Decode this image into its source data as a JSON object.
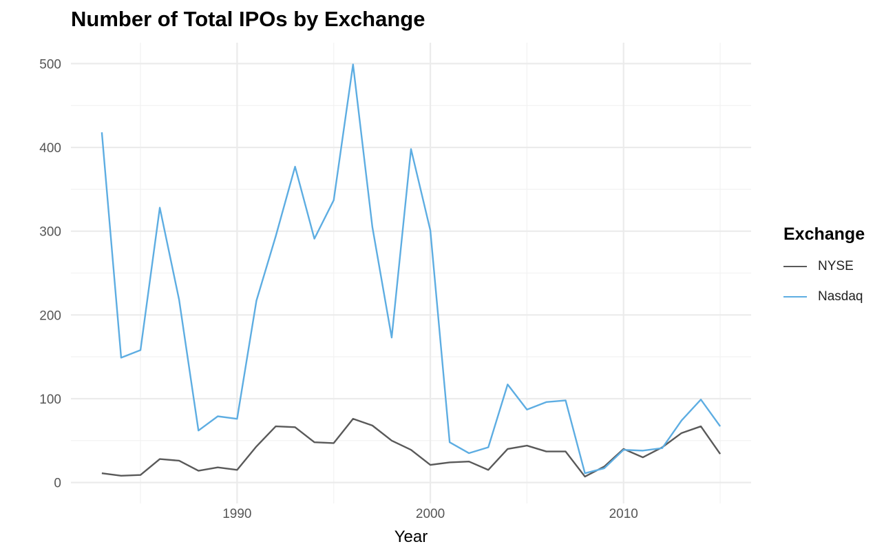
{
  "chart_data": {
    "type": "line",
    "title": "Number of Total IPOs by Exchange",
    "xlabel": "Year",
    "ylabel": "",
    "xlim": [
      1981.4,
      2016.6
    ],
    "ylim": [
      -25,
      525
    ],
    "x_ticks": [
      1990,
      2000,
      2010
    ],
    "x_tick_labels": [
      "1990",
      "2000",
      "2010"
    ],
    "y_ticks": [
      0,
      100,
      200,
      300,
      400,
      500
    ],
    "y_tick_labels": [
      "0",
      "100",
      "200",
      "300",
      "400",
      "500"
    ],
    "grid": true,
    "legend": {
      "title": "Exchange",
      "placement": "right"
    },
    "x": [
      1983,
      1984,
      1985,
      1986,
      1987,
      1988,
      1989,
      1990,
      1991,
      1992,
      1993,
      1994,
      1995,
      1996,
      1997,
      1998,
      1999,
      2000,
      2001,
      2002,
      2003,
      2004,
      2005,
      2006,
      2007,
      2008,
      2009,
      2010,
      2011,
      2012,
      2013,
      2014,
      2015
    ],
    "series": [
      {
        "name": "NYSE",
        "color": "#595959",
        "values": [
          11,
          8,
          9,
          28,
          26,
          14,
          18,
          15,
          43,
          67,
          66,
          48,
          47,
          76,
          68,
          50,
          39,
          21,
          24,
          25,
          15,
          40,
          44,
          37,
          37,
          7,
          19,
          40,
          30,
          42,
          59,
          67,
          34
        ]
      },
      {
        "name": "Nasdaq",
        "color": "#5dade2",
        "values": [
          418,
          149,
          158,
          328,
          218,
          62,
          79,
          76,
          217,
          294,
          377,
          291,
          337,
          499,
          305,
          173,
          398,
          301,
          48,
          35,
          42,
          117,
          87,
          96,
          98,
          11,
          17,
          39,
          38,
          41,
          74,
          99,
          67
        ]
      }
    ]
  }
}
